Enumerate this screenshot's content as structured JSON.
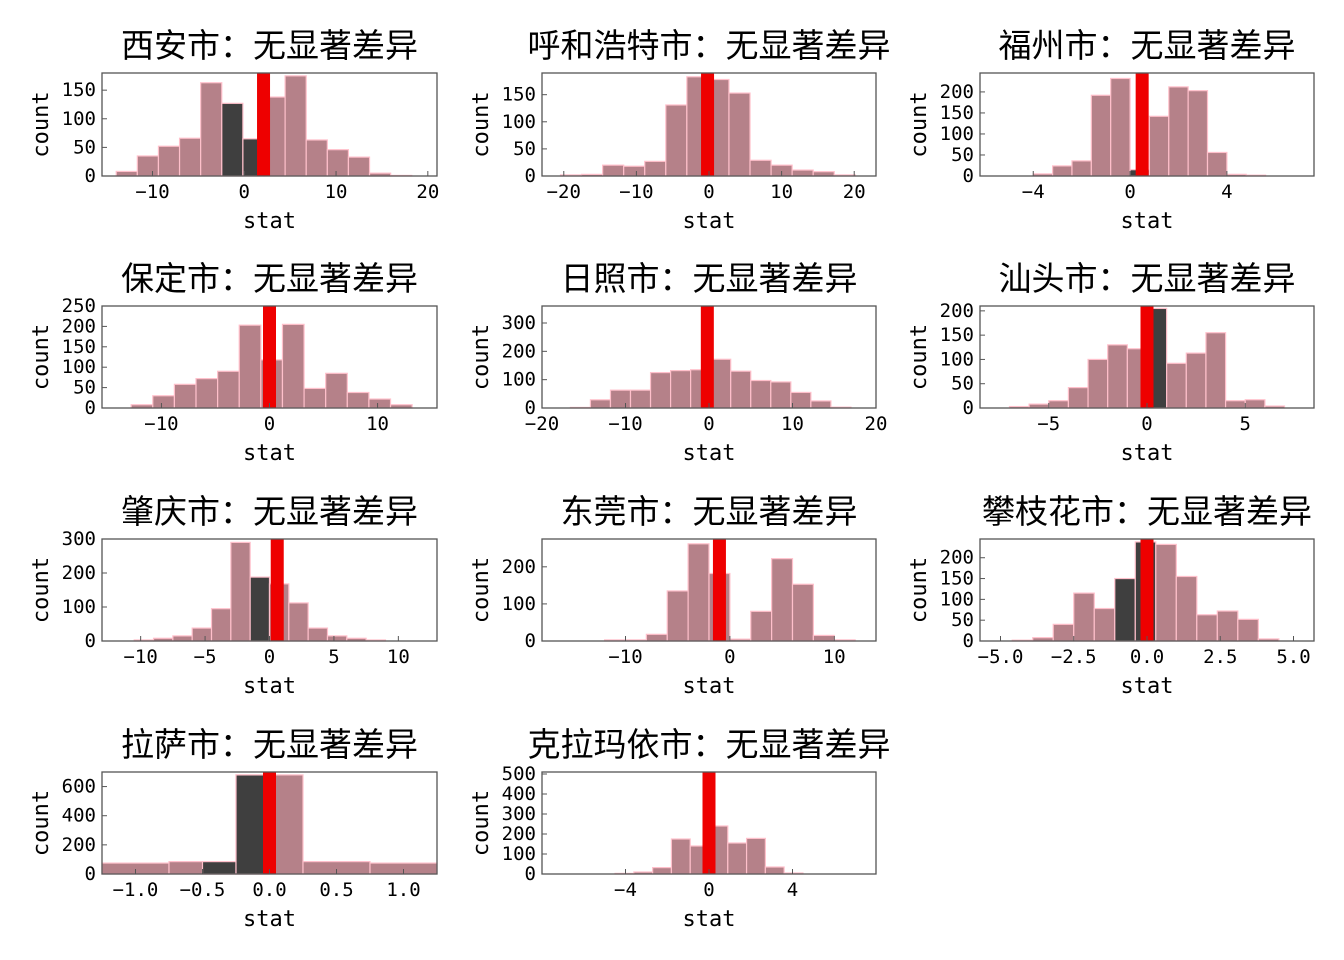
{
  "colors": {
    "bar_fill": "#b58189",
    "bar_edge": "#ffc0cb",
    "highlight_fill": "#3f3f3f",
    "stat_line": "#ee0000",
    "frame": "#555555",
    "background": "#ffffff"
  },
  "chart_data": [
    {
      "type": "bar",
      "title": "西安市：无显著差异",
      "xlabel": "stat",
      "ylabel": "count",
      "xlim": [
        -15.5,
        21
      ],
      "ylim": [
        0,
        180
      ],
      "xticks": [
        -10,
        0,
        10,
        20
      ],
      "xtick_labels": [
        "−10",
        "0",
        "10",
        "20"
      ],
      "yticks": [
        0,
        50,
        100,
        150
      ],
      "ytick_labels": [
        "0",
        "50",
        "100",
        "150"
      ],
      "bin_width": 2.3,
      "bins": [
        {
          "x": -12.8,
          "count": 8
        },
        {
          "x": -10.5,
          "count": 35
        },
        {
          "x": -8.2,
          "count": 52
        },
        {
          "x": -5.9,
          "count": 66
        },
        {
          "x": -3.6,
          "count": 163
        },
        {
          "x": -1.3,
          "count": 127,
          "highlight": true
        },
        {
          "x": 1.0,
          "count": 65,
          "highlight": true
        },
        {
          "x": 3.3,
          "count": 138
        },
        {
          "x": 5.6,
          "count": 175
        },
        {
          "x": 7.9,
          "count": 63
        },
        {
          "x": 10.2,
          "count": 46
        },
        {
          "x": 12.5,
          "count": 33
        },
        {
          "x": 14.8,
          "count": 5
        },
        {
          "x": 17.1,
          "count": 1
        }
      ],
      "stat_value": 2.1
    },
    {
      "type": "bar",
      "title": "呼和浩特市：无显著差异",
      "xlabel": "stat",
      "ylabel": "count",
      "xlim": [
        -23,
        23
      ],
      "ylim": [
        0,
        190
      ],
      "xticks": [
        -20,
        -10,
        0,
        10,
        20
      ],
      "xtick_labels": [
        "−20",
        "−10",
        "0",
        "10",
        "20"
      ],
      "yticks": [
        0,
        50,
        100,
        150
      ],
      "ytick_labels": [
        "0",
        "50",
        "100",
        "150"
      ],
      "bin_width": 2.9,
      "bins": [
        {
          "x": -19.0,
          "count": 2
        },
        {
          "x": -16.1,
          "count": 3
        },
        {
          "x": -13.2,
          "count": 20
        },
        {
          "x": -10.3,
          "count": 18
        },
        {
          "x": -7.4,
          "count": 27
        },
        {
          "x": -4.5,
          "count": 131
        },
        {
          "x": -1.6,
          "count": 183
        },
        {
          "x": 1.3,
          "count": 178
        },
        {
          "x": 4.2,
          "count": 153
        },
        {
          "x": 7.1,
          "count": 29
        },
        {
          "x": 10.0,
          "count": 20
        },
        {
          "x": 12.9,
          "count": 11
        },
        {
          "x": 15.8,
          "count": 8
        },
        {
          "x": 18.7,
          "count": 2
        }
      ],
      "stat_value": -0.2
    },
    {
      "type": "bar",
      "title": "福州市：无显著差异",
      "xlabel": "stat",
      "ylabel": "count",
      "xlim": [
        -6.2,
        7.6
      ],
      "ylim": [
        0,
        245
      ],
      "xticks": [
        -4,
        0,
        4
      ],
      "xtick_labels": [
        "−4",
        "0",
        "4"
      ],
      "yticks": [
        0,
        50,
        100,
        150,
        200
      ],
      "ytick_labels": [
        "0",
        "50",
        "100",
        "150",
        "200"
      ],
      "bin_width": 0.8,
      "bins": [
        {
          "x": -3.6,
          "count": 5
        },
        {
          "x": -2.8,
          "count": 24
        },
        {
          "x": -2.0,
          "count": 36
        },
        {
          "x": -1.2,
          "count": 192
        },
        {
          "x": -0.4,
          "count": 232
        },
        {
          "x": 0.4,
          "count": 15,
          "highlight": true
        },
        {
          "x": 1.2,
          "count": 142
        },
        {
          "x": 2.0,
          "count": 212
        },
        {
          "x": 2.8,
          "count": 203
        },
        {
          "x": 3.6,
          "count": 56
        },
        {
          "x": 4.4,
          "count": 4
        },
        {
          "x": 5.2,
          "count": 2
        }
      ],
      "stat_value": 0.5
    },
    {
      "type": "bar",
      "title": "保定市：无显著差异",
      "xlabel": "stat",
      "ylabel": "count",
      "xlim": [
        -15.5,
        15.5
      ],
      "ylim": [
        0,
        250
      ],
      "xticks": [
        -10,
        0,
        10
      ],
      "xtick_labels": [
        "−10",
        "0",
        "10"
      ],
      "yticks": [
        0,
        50,
        100,
        150,
        200,
        250
      ],
      "ytick_labels": [
        "0",
        "50",
        "100",
        "150",
        "200",
        "250"
      ],
      "bin_width": 2.0,
      "bins": [
        {
          "x": -11.8,
          "count": 8
        },
        {
          "x": -9.8,
          "count": 30
        },
        {
          "x": -7.8,
          "count": 58
        },
        {
          "x": -5.8,
          "count": 72
        },
        {
          "x": -3.8,
          "count": 90
        },
        {
          "x": -1.8,
          "count": 203
        },
        {
          "x": 0.2,
          "count": 118
        },
        {
          "x": 2.2,
          "count": 205
        },
        {
          "x": 4.2,
          "count": 48
        },
        {
          "x": 6.2,
          "count": 85
        },
        {
          "x": 8.2,
          "count": 38
        },
        {
          "x": 10.2,
          "count": 22
        },
        {
          "x": 12.2,
          "count": 8
        }
      ],
      "stat_value": 0.0
    },
    {
      "type": "bar",
      "title": "日照市：无显著差异",
      "xlabel": "stat",
      "ylabel": "count",
      "xlim": [
        -20,
        20
      ],
      "ylim": [
        0,
        360
      ],
      "xticks": [
        -20,
        -10,
        0,
        10,
        20
      ],
      "xtick_labels": [
        "−20",
        "−10",
        "0",
        "10",
        "20"
      ],
      "yticks": [
        0,
        100,
        200,
        300
      ],
      "ytick_labels": [
        "0",
        "100",
        "200",
        "300"
      ],
      "bin_width": 2.4,
      "bins": [
        {
          "x": -15.4,
          "count": 2
        },
        {
          "x": -13.0,
          "count": 29
        },
        {
          "x": -10.6,
          "count": 63
        },
        {
          "x": -8.2,
          "count": 63
        },
        {
          "x": -5.8,
          "count": 125
        },
        {
          "x": -3.4,
          "count": 132
        },
        {
          "x": -1.0,
          "count": 135
        },
        {
          "x": 1.4,
          "count": 172
        },
        {
          "x": 3.8,
          "count": 130
        },
        {
          "x": 6.2,
          "count": 97
        },
        {
          "x": 8.6,
          "count": 92
        },
        {
          "x": 11.0,
          "count": 55
        },
        {
          "x": 13.4,
          "count": 25
        },
        {
          "x": 15.8,
          "count": 3
        }
      ],
      "stat_value": -0.2
    },
    {
      "type": "bar",
      "title": "汕头市：无显著差异",
      "xlabel": "stat",
      "ylabel": "count",
      "xlim": [
        -8.5,
        8.5
      ],
      "ylim": [
        0,
        210
      ],
      "xticks": [
        -5,
        0,
        5
      ],
      "xtick_labels": [
        "−5",
        "0",
        "5"
      ],
      "yticks": [
        0,
        50,
        100,
        150,
        200
      ],
      "ytick_labels": [
        "0",
        "50",
        "100",
        "150",
        "200"
      ],
      "bin_width": 1.0,
      "bins": [
        {
          "x": -6.5,
          "count": 3
        },
        {
          "x": -5.5,
          "count": 8
        },
        {
          "x": -4.5,
          "count": 15
        },
        {
          "x": -3.5,
          "count": 42
        },
        {
          "x": -2.5,
          "count": 100
        },
        {
          "x": -1.5,
          "count": 130
        },
        {
          "x": -0.5,
          "count": 122
        },
        {
          "x": 0.5,
          "count": 205,
          "highlight": true
        },
        {
          "x": 1.5,
          "count": 92
        },
        {
          "x": 2.5,
          "count": 113
        },
        {
          "x": 3.5,
          "count": 155
        },
        {
          "x": 4.5,
          "count": 15
        },
        {
          "x": 5.5,
          "count": 17
        },
        {
          "x": 6.5,
          "count": 4
        }
      ],
      "stat_value": 0.0
    },
    {
      "type": "bar",
      "title": "肇庆市：无显著差异",
      "xlabel": "stat",
      "ylabel": "count",
      "xlim": [
        -13,
        13
      ],
      "ylim": [
        0,
        300
      ],
      "xticks": [
        -10,
        -5,
        0,
        5,
        10
      ],
      "xtick_labels": [
        "−10",
        "−5",
        "0",
        "5",
        "10"
      ],
      "yticks": [
        0,
        100,
        200,
        300
      ],
      "ytick_labels": [
        "0",
        "100",
        "200",
        "300"
      ],
      "bin_width": 1.5,
      "bins": [
        {
          "x": -9.75,
          "count": 3
        },
        {
          "x": -8.25,
          "count": 8
        },
        {
          "x": -6.75,
          "count": 15
        },
        {
          "x": -5.25,
          "count": 38
        },
        {
          "x": -3.75,
          "count": 95
        },
        {
          "x": -2.25,
          "count": 290
        },
        {
          "x": -0.75,
          "count": 188,
          "highlight": true
        },
        {
          "x": 0.75,
          "count": 168
        },
        {
          "x": 2.25,
          "count": 112
        },
        {
          "x": 3.75,
          "count": 38
        },
        {
          "x": 5.25,
          "count": 15
        },
        {
          "x": 6.75,
          "count": 8
        },
        {
          "x": 8.25,
          "count": 3
        }
      ],
      "stat_value": 0.6
    },
    {
      "type": "bar",
      "title": "东莞市：无显著差异",
      "xlabel": "stat",
      "ylabel": "count",
      "xlim": [
        -18,
        14
      ],
      "ylim": [
        0,
        275
      ],
      "xticks": [
        -10,
        0,
        10
      ],
      "xtick_labels": [
        "−10",
        "0",
        "10"
      ],
      "yticks": [
        0,
        100,
        200
      ],
      "ytick_labels": [
        "0",
        "100",
        "200"
      ],
      "bin_width": 2.0,
      "bins": [
        {
          "x": -11.0,
          "count": 3
        },
        {
          "x": -9.0,
          "count": 3
        },
        {
          "x": -7.0,
          "count": 18
        },
        {
          "x": -5.0,
          "count": 135
        },
        {
          "x": -3.0,
          "count": 262
        },
        {
          "x": -1.0,
          "count": 182
        },
        {
          "x": 1.0,
          "count": 5
        },
        {
          "x": 3.0,
          "count": 80
        },
        {
          "x": 5.0,
          "count": 222
        },
        {
          "x": 7.0,
          "count": 153
        },
        {
          "x": 9.0,
          "count": 15
        },
        {
          "x": 11.0,
          "count": 3
        }
      ],
      "stat_value": -1.0
    },
    {
      "type": "bar",
      "title": "攀枝花市：无显著差异",
      "xlabel": "stat",
      "ylabel": "count",
      "xlim": [
        -5.7,
        5.7
      ],
      "ylim": [
        0,
        245
      ],
      "xticks": [
        -5,
        -2.5,
        0,
        2.5,
        5
      ],
      "xtick_labels": [
        "−5.0",
        "−2.5",
        "0.0",
        "2.5",
        "5.0"
      ],
      "yticks": [
        0,
        50,
        100,
        150,
        200
      ],
      "ytick_labels": [
        "0",
        "50",
        "100",
        "150",
        "200"
      ],
      "bin_width": 0.7,
      "bins": [
        {
          "x": -4.25,
          "count": 2
        },
        {
          "x": -3.55,
          "count": 8
        },
        {
          "x": -2.85,
          "count": 40
        },
        {
          "x": -2.15,
          "count": 115
        },
        {
          "x": -1.45,
          "count": 78
        },
        {
          "x": -0.75,
          "count": 150,
          "highlight": true
        },
        {
          "x": -0.05,
          "count": 238,
          "highlight": true
        },
        {
          "x": 0.65,
          "count": 232
        },
        {
          "x": 1.35,
          "count": 155
        },
        {
          "x": 2.05,
          "count": 63
        },
        {
          "x": 2.75,
          "count": 72
        },
        {
          "x": 3.45,
          "count": 52
        },
        {
          "x": 4.15,
          "count": 5
        }
      ],
      "stat_value": 0.0
    },
    {
      "type": "bar",
      "title": "拉萨市：无显著差异",
      "xlabel": "stat",
      "ylabel": "count",
      "xlim": [
        -1.25,
        1.25
      ],
      "ylim": [
        0,
        700
      ],
      "xticks": [
        -1.0,
        -0.5,
        0.0,
        0.5,
        1.0
      ],
      "xtick_labels": [
        "−1.0",
        "−0.5",
        "0.0",
        "0.5",
        "1.0"
      ],
      "yticks": [
        0,
        200,
        400,
        600
      ],
      "ytick_labels": [
        "0",
        "200",
        "400",
        "600"
      ],
      "bin_width": 0.5,
      "bins": [
        {
          "x": -1.0,
          "count": 75
        },
        {
          "x": -0.5,
          "count": 85
        },
        {
          "x": 0.0,
          "count": 680
        },
        {
          "x": 0.5,
          "count": 85
        },
        {
          "x": 1.0,
          "count": 75
        }
      ],
      "highlight_segments": [
        {
          "from": -0.5,
          "to": -0.25,
          "count": 85
        },
        {
          "from": -0.25,
          "to": 0.0,
          "count": 680
        }
      ],
      "stat_value": 0.0
    },
    {
      "type": "bar",
      "title": "克拉玛依市：无显著差异",
      "xlabel": "stat",
      "ylabel": "count",
      "xlim": [
        -8,
        8
      ],
      "ylim": [
        0,
        510
      ],
      "xticks": [
        -4,
        0,
        4
      ],
      "xtick_labels": [
        "−4",
        "0",
        "4"
      ],
      "yticks": [
        0,
        100,
        200,
        300,
        400,
        500
      ],
      "ytick_labels": [
        "0",
        "100",
        "200",
        "300",
        "400",
        "500"
      ],
      "bin_width": 0.9,
      "bins": [
        {
          "x": -4.05,
          "count": 3
        },
        {
          "x": -3.15,
          "count": 10
        },
        {
          "x": -2.25,
          "count": 32
        },
        {
          "x": -1.35,
          "count": 175
        },
        {
          "x": -0.45,
          "count": 140
        },
        {
          "x": 0.45,
          "count": 240
        },
        {
          "x": 1.35,
          "count": 155
        },
        {
          "x": 2.25,
          "count": 178
        },
        {
          "x": 3.15,
          "count": 35
        },
        {
          "x": 4.05,
          "count": 5
        }
      ],
      "stat_value": 0.0
    }
  ]
}
